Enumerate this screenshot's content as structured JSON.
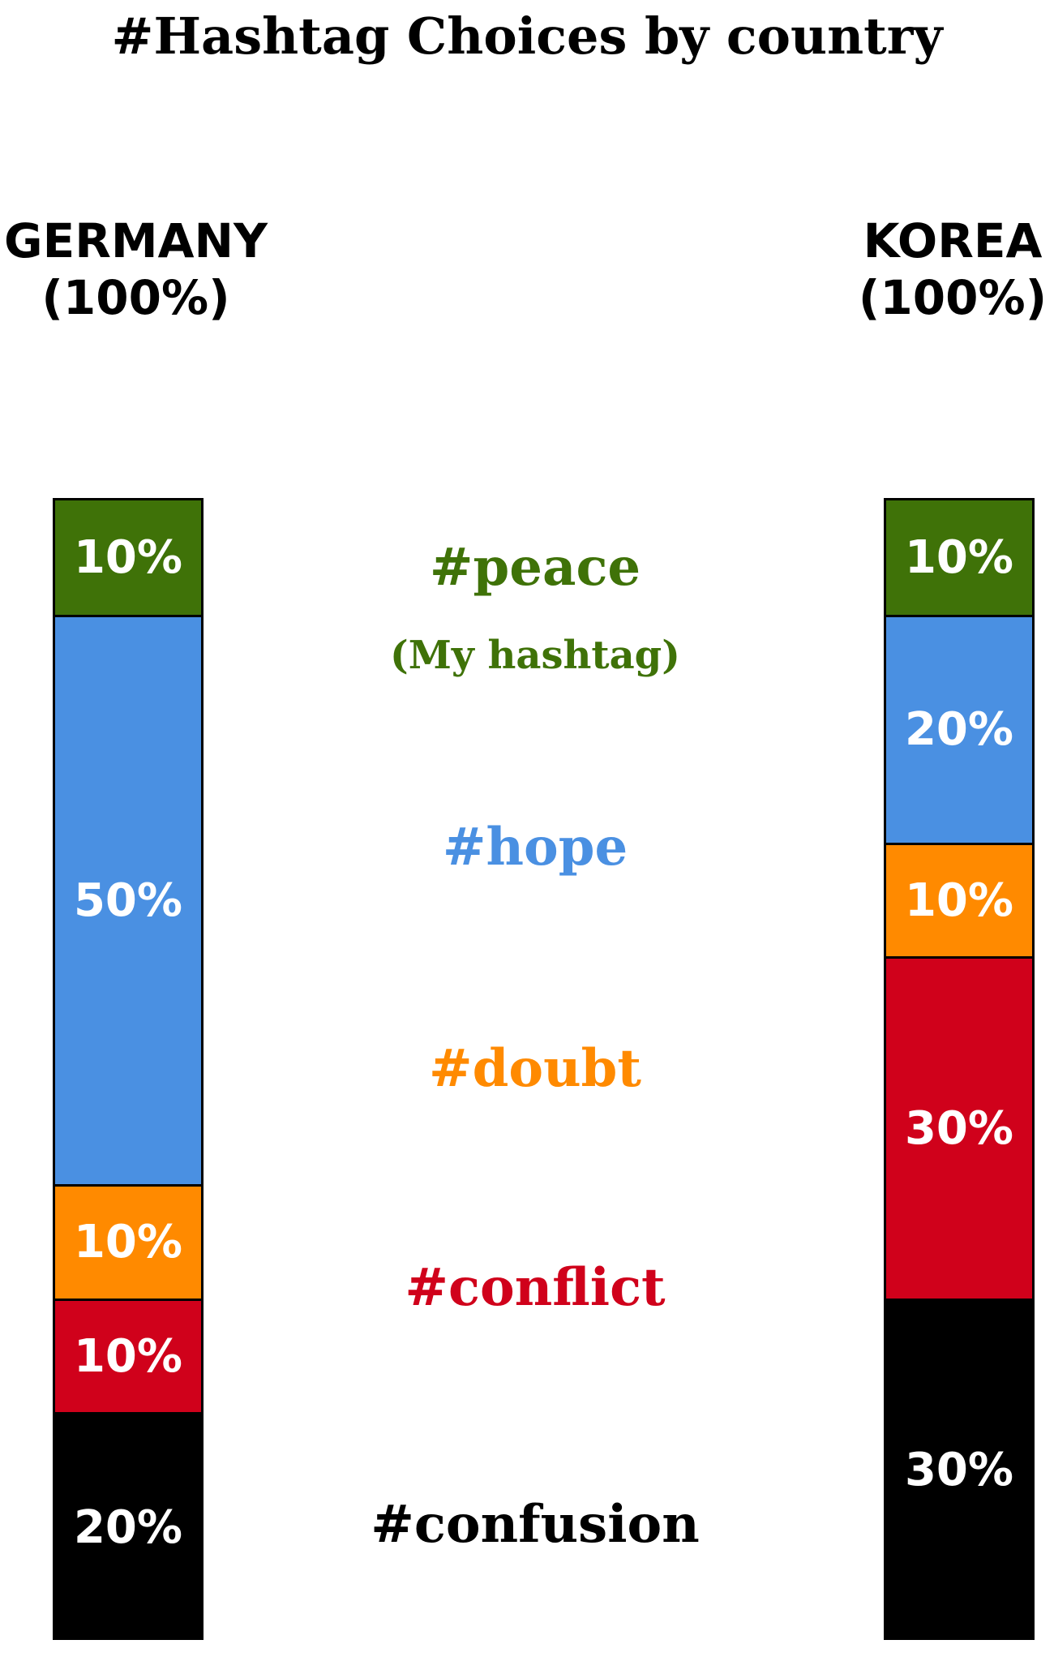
{
  "chart_data": {
    "type": "bar",
    "stacked": true,
    "orientation": "vertical",
    "title": "#Hashtag Choices by country",
    "categories": [
      "GERMANY",
      "KOREA"
    ],
    "category_totals": [
      "(100%)",
      "(100%)"
    ],
    "series": [
      {
        "name": "#peace",
        "note": "(My hashtag)",
        "color": "#3f7208",
        "values": [
          10,
          10
        ],
        "labels": [
          "10%",
          "10%"
        ]
      },
      {
        "name": "#hope",
        "color": "#4a90e2",
        "values": [
          50,
          20
        ],
        "labels": [
          "50%",
          "20%"
        ]
      },
      {
        "name": "#doubt",
        "color": "#ff8a00",
        "values": [
          10,
          10
        ],
        "labels": [
          "10%",
          "10%"
        ]
      },
      {
        "name": "#conflict",
        "color": "#d0011b",
        "values": [
          10,
          30
        ],
        "labels": [
          "10%",
          "30%"
        ]
      },
      {
        "name": "#confusion",
        "color": "#000000",
        "values": [
          20,
          30
        ],
        "labels": [
          "20%",
          "30%"
        ]
      }
    ],
    "ylim": [
      0,
      100
    ],
    "grid": false,
    "legend": "center"
  }
}
